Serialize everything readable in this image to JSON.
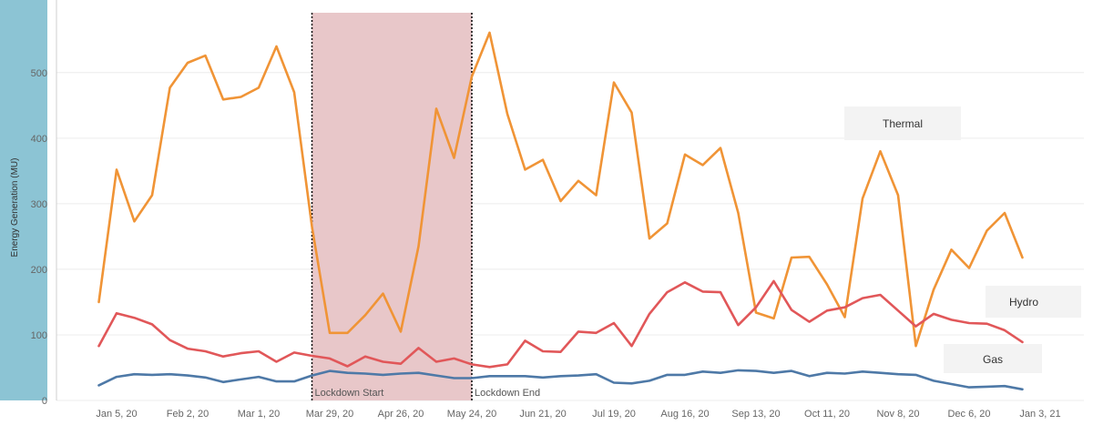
{
  "chart_data": {
    "type": "line",
    "title": "",
    "xlabel": "",
    "ylabel": "Energy Generation (MU)",
    "ylim": [
      0,
      560
    ],
    "yticks": [
      0,
      100,
      200,
      300,
      400,
      500
    ],
    "x_ticks": [
      "Jan 5, 20",
      "Feb 2, 20",
      "Mar 1, 20",
      "Mar 29, 20",
      "Apr 26, 20",
      "May 24, 20",
      "Jun 21, 20",
      "Jul 19, 20",
      "Aug 16, 20",
      "Sep 13, 20",
      "Oct 11, 20",
      "Nov 8, 20",
      "Dec 6, 20",
      "Jan 3, 21"
    ],
    "x_start": "Dec 29, 19",
    "x_interval": "weekly",
    "highlight": {
      "start_label": "Lockdown Start",
      "end_label": "Lockdown End",
      "start_index": 12,
      "end_index": 21,
      "color": "#e8c7c9"
    },
    "series": [
      {
        "name": "Thermal",
        "color": "#f09436",
        "values": [
          150,
          352,
          273,
          313,
          477,
          515,
          526,
          459,
          463,
          477,
          540,
          470,
          265,
          103,
          103,
          130,
          163,
          105,
          235,
          445,
          370,
          494,
          561,
          437,
          352,
          367,
          304,
          335,
          313,
          485,
          439,
          247,
          270,
          375,
          359,
          385,
          286,
          134,
          125,
          218,
          219,
          177,
          127,
          308,
          380,
          313,
          83,
          169,
          230,
          202,
          259,
          286,
          218
        ]
      },
      {
        "name": "Hydro",
        "color": "#e15759",
        "values": [
          83,
          133,
          126,
          116,
          92,
          79,
          75,
          67,
          72,
          75,
          59,
          73,
          68,
          64,
          52,
          67,
          59,
          56,
          80,
          59,
          64,
          55,
          51,
          55,
          91,
          75,
          74,
          105,
          103,
          118,
          83,
          132,
          165,
          180,
          166,
          165,
          115,
          142,
          182,
          138,
          120,
          137,
          142,
          156,
          161,
          137,
          113,
          132,
          123,
          118,
          117,
          107,
          89
        ]
      },
      {
        "name": "Gas",
        "color": "#4e79a7",
        "values": [
          23,
          36,
          40,
          39,
          40,
          38,
          35,
          28,
          32,
          36,
          29,
          29,
          38,
          45,
          42,
          41,
          39,
          41,
          42,
          38,
          34,
          34,
          37,
          37,
          37,
          35,
          37,
          38,
          40,
          27,
          26,
          30,
          39,
          39,
          44,
          42,
          46,
          45,
          42,
          45,
          37,
          42,
          41,
          44,
          42,
          40,
          39,
          30,
          25,
          20,
          21,
          22,
          17
        ]
      }
    ]
  }
}
